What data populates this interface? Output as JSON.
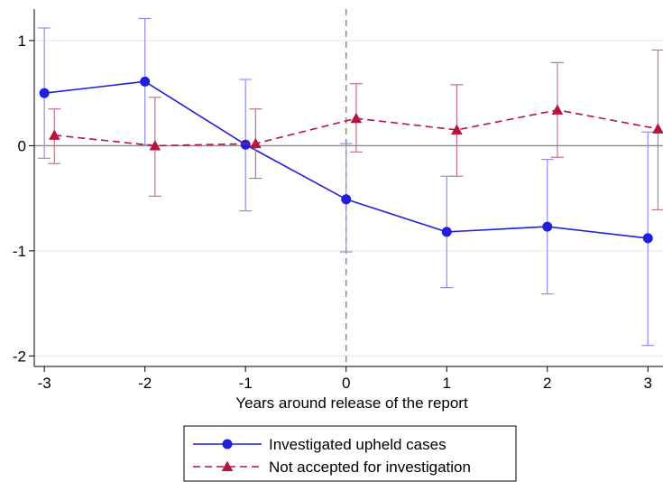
{
  "chart_data": {
    "type": "line",
    "title": "",
    "xlabel": "Years around release of the report",
    "ylabel": "",
    "xlim": [
      -3.1,
      3.15
    ],
    "ylim": [
      -2.1,
      1.3
    ],
    "x_ticks": [
      -3,
      -2,
      -1,
      0,
      1,
      2,
      3
    ],
    "x_tick_labels": [
      "-3",
      "-2",
      "-1",
      "0",
      "1",
      "2",
      "3"
    ],
    "y_ticks": [
      -2,
      -1,
      0,
      1
    ],
    "y_tick_labels": [
      "-2",
      "-1",
      "0",
      "1"
    ],
    "grid": true,
    "reference_lines": {
      "vertical_dashed_x": 0,
      "horizontal_y": 0
    },
    "legend_position": "bottom",
    "series": [
      {
        "name": "Investigated upheld cases",
        "color": "#1f1fdd",
        "marker": "circle",
        "line_style": "solid",
        "x": [
          -3,
          -2,
          -1,
          0,
          1,
          2,
          3
        ],
        "y": [
          0.5,
          0.61,
          0.01,
          -0.51,
          -0.82,
          -0.77,
          -0.88
        ],
        "ci_low": [
          -0.12,
          0.01,
          -0.62,
          -1.01,
          -1.35,
          -1.41,
          -1.9
        ],
        "ci_high": [
          1.12,
          1.21,
          0.63,
          0.02,
          -0.29,
          -0.13,
          0.13
        ]
      },
      {
        "name": "Not accepted for investigation",
        "color": "#b8133d",
        "marker": "triangle",
        "line_style": "dashed",
        "x": [
          -2.9,
          -1.9,
          -0.9,
          0.1,
          1.1,
          2.1,
          3.1
        ],
        "y": [
          0.1,
          0.0,
          0.02,
          0.26,
          0.15,
          0.34,
          0.16
        ],
        "ci_low": [
          -0.17,
          -0.48,
          -0.31,
          -0.06,
          -0.29,
          -0.11,
          -0.61
        ],
        "ci_high": [
          0.35,
          0.46,
          0.35,
          0.59,
          0.58,
          0.79,
          0.91
        ]
      }
    ]
  }
}
